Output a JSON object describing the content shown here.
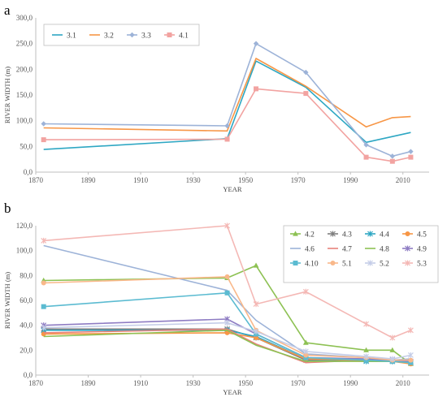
{
  "panels": [
    {
      "label": "a"
    },
    {
      "label": "b"
    }
  ],
  "chart_data": [
    {
      "type": "line",
      "panel": "a",
      "xlabel": "YEAR",
      "ylabel": "RIVER WIDTH (m)",
      "xlim": [
        1870,
        2020
      ],
      "ylim": [
        0,
        300
      ],
      "xticks": [
        "1870",
        "1890",
        "1910",
        "1930",
        "1950",
        "1970",
        "1990",
        "2010"
      ],
      "yticks": [
        "0,0",
        "50,0",
        "100,0",
        "150,0",
        "200,0",
        "250,0",
        "300,0"
      ],
      "grid": false,
      "legend": "top-left",
      "series": [
        {
          "name": "3.1",
          "color": "#2EA7C3",
          "marker": "none",
          "x": [
            1873,
            1943,
            1954,
            1973,
            1996,
            2013
          ],
          "y": [
            44,
            65,
            216,
            165,
            58,
            77
          ]
        },
        {
          "name": "3.2",
          "color": "#F79646",
          "marker": "none",
          "x": [
            1873,
            1943,
            1954,
            1973,
            1996,
            2006,
            2013
          ],
          "y": [
            86,
            80,
            221,
            167,
            88,
            106,
            108
          ]
        },
        {
          "name": "3.3",
          "color": "#9DB3D8",
          "marker": "diamond",
          "x": [
            1873,
            1943,
            1954,
            1973,
            1996,
            2006,
            2013
          ],
          "y": [
            94,
            90,
            250,
            194,
            53,
            31,
            40
          ]
        },
        {
          "name": "4.1",
          "color": "#F2A3A1",
          "marker": "square",
          "x": [
            1873,
            1943,
            1954,
            1973,
            1996,
            2006,
            2013
          ],
          "y": [
            63,
            64,
            162,
            153,
            29,
            21,
            29
          ]
        }
      ]
    },
    {
      "type": "line",
      "panel": "b",
      "xlabel": "YEAR",
      "ylabel": "RIVER WIDTH (m)",
      "xlim": [
        1870,
        2020
      ],
      "ylim": [
        0,
        120
      ],
      "xticks": [
        "1870",
        "1890",
        "1910",
        "1930",
        "1950",
        "1970",
        "1990",
        "2010"
      ],
      "yticks": [
        "0,0",
        "20,0",
        "40,0",
        "60,0",
        "80,0",
        "100,0",
        "120,0"
      ],
      "grid": false,
      "legend": "top-right",
      "series": [
        {
          "name": "4.2",
          "color": "#8DC153",
          "marker": "triangle",
          "x": [
            1873,
            1943,
            1954,
            1973,
            1996,
            2006,
            2013
          ],
          "y": [
            76,
            78,
            88,
            26,
            20,
            20,
            9
          ]
        },
        {
          "name": "4.3",
          "color": "#7F7F7F",
          "marker": "star",
          "x": [
            1873,
            1943,
            1954,
            1973,
            1996,
            2006,
            2013
          ],
          "y": [
            37,
            37,
            30,
            12,
            12,
            11,
            10
          ]
        },
        {
          "name": "4.4",
          "color": "#2EA7C3",
          "marker": "star",
          "x": [
            1873,
            1943,
            1954,
            1973,
            1996,
            2006,
            2013
          ],
          "y": [
            36,
            36,
            31,
            13,
            11,
            11,
            10
          ]
        },
        {
          "name": "4.5",
          "color": "#F79646",
          "marker": "circle",
          "x": [
            1873,
            1943,
            1954,
            1973,
            1996,
            2006,
            2013
          ],
          "y": [
            33,
            34,
            30,
            13,
            12,
            11,
            9
          ]
        },
        {
          "name": "4.6",
          "color": "#9DB3D8",
          "marker": "none",
          "x": [
            1873,
            1943,
            1954,
            1973,
            1996,
            2006,
            2013
          ],
          "y": [
            104,
            68,
            44,
            17,
            14,
            12,
            13
          ]
        },
        {
          "name": "4.7",
          "color": "#E8827B",
          "marker": "none",
          "x": [
            1873,
            1943,
            1954,
            1973,
            1996,
            2006,
            2013
          ],
          "y": [
            34,
            37,
            25,
            10,
            12,
            11,
            11
          ]
        },
        {
          "name": "4.8",
          "color": "#8DC153",
          "marker": "none",
          "x": [
            1873,
            1943,
            1954,
            1973,
            1996,
            2006,
            2013
          ],
          "y": [
            31,
            36,
            24,
            11,
            11,
            11,
            10
          ]
        },
        {
          "name": "4.9",
          "color": "#8E7CC3",
          "marker": "star",
          "x": [
            1873,
            1943,
            1954,
            1973,
            1996,
            2006,
            2013
          ],
          "y": [
            40,
            45,
            33,
            14,
            13,
            12,
            11
          ]
        },
        {
          "name": "4.10",
          "color": "#5BBBD1",
          "marker": "square",
          "x": [
            1873,
            1943,
            1954,
            1973,
            1996,
            2006,
            2013
          ],
          "y": [
            55,
            66,
            33,
            14,
            12,
            11,
            10
          ]
        },
        {
          "name": "5.1",
          "color": "#F9B88A",
          "marker": "circle",
          "x": [
            1873,
            1943,
            1954,
            1973,
            1996,
            2006,
            2013
          ],
          "y": [
            74,
            79,
            36,
            16,
            14,
            12,
            12
          ]
        },
        {
          "name": "5.2",
          "color": "#C5CDE8",
          "marker": "star",
          "x": [
            1873,
            1943,
            1954,
            1973,
            1996,
            2006,
            2013
          ],
          "y": [
            38,
            42,
            35,
            19,
            15,
            13,
            16
          ]
        },
        {
          "name": "5.3",
          "color": "#F4B8B5",
          "marker": "star",
          "x": [
            1873,
            1943,
            1954,
            1973,
            1996,
            2006,
            2013
          ],
          "y": [
            108,
            120,
            57,
            67,
            41,
            30,
            36
          ]
        }
      ]
    }
  ]
}
